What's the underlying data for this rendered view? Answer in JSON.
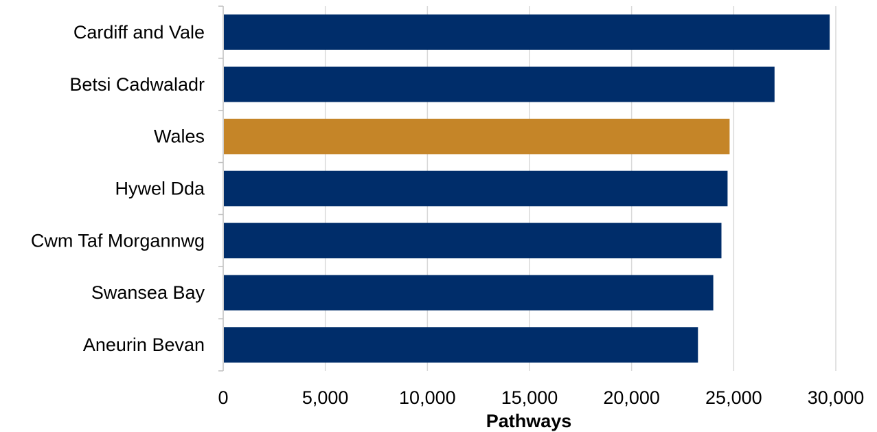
{
  "chart_data": {
    "type": "bar",
    "orientation": "horizontal",
    "categories": [
      "Cardiff and Vale",
      "Betsi Cadwaladr",
      "Wales",
      "Hywel Dda",
      "Cwm Taf Morgannwg",
      "Swansea Bay",
      "Aneurin Bevan"
    ],
    "values": [
      29700,
      27000,
      24800,
      24700,
      24400,
      24000,
      23250
    ],
    "highlight_category": "Wales",
    "colors": {
      "bar": "#002D6A",
      "highlight": "#C58528",
      "grid": "#D9D9D9",
      "axis": "#BFBFBF"
    },
    "xlabel": "Pathways",
    "ylabel": "",
    "title": "",
    "xlim": [
      0,
      30000
    ],
    "xticks": [
      0,
      5000,
      10000,
      15000,
      20000,
      25000,
      30000
    ],
    "xtick_labels": [
      "0",
      "5,000",
      "10,000",
      "15,000",
      "20,000",
      "25,000",
      "30,000"
    ],
    "grid": "vertical",
    "legend": "none"
  }
}
